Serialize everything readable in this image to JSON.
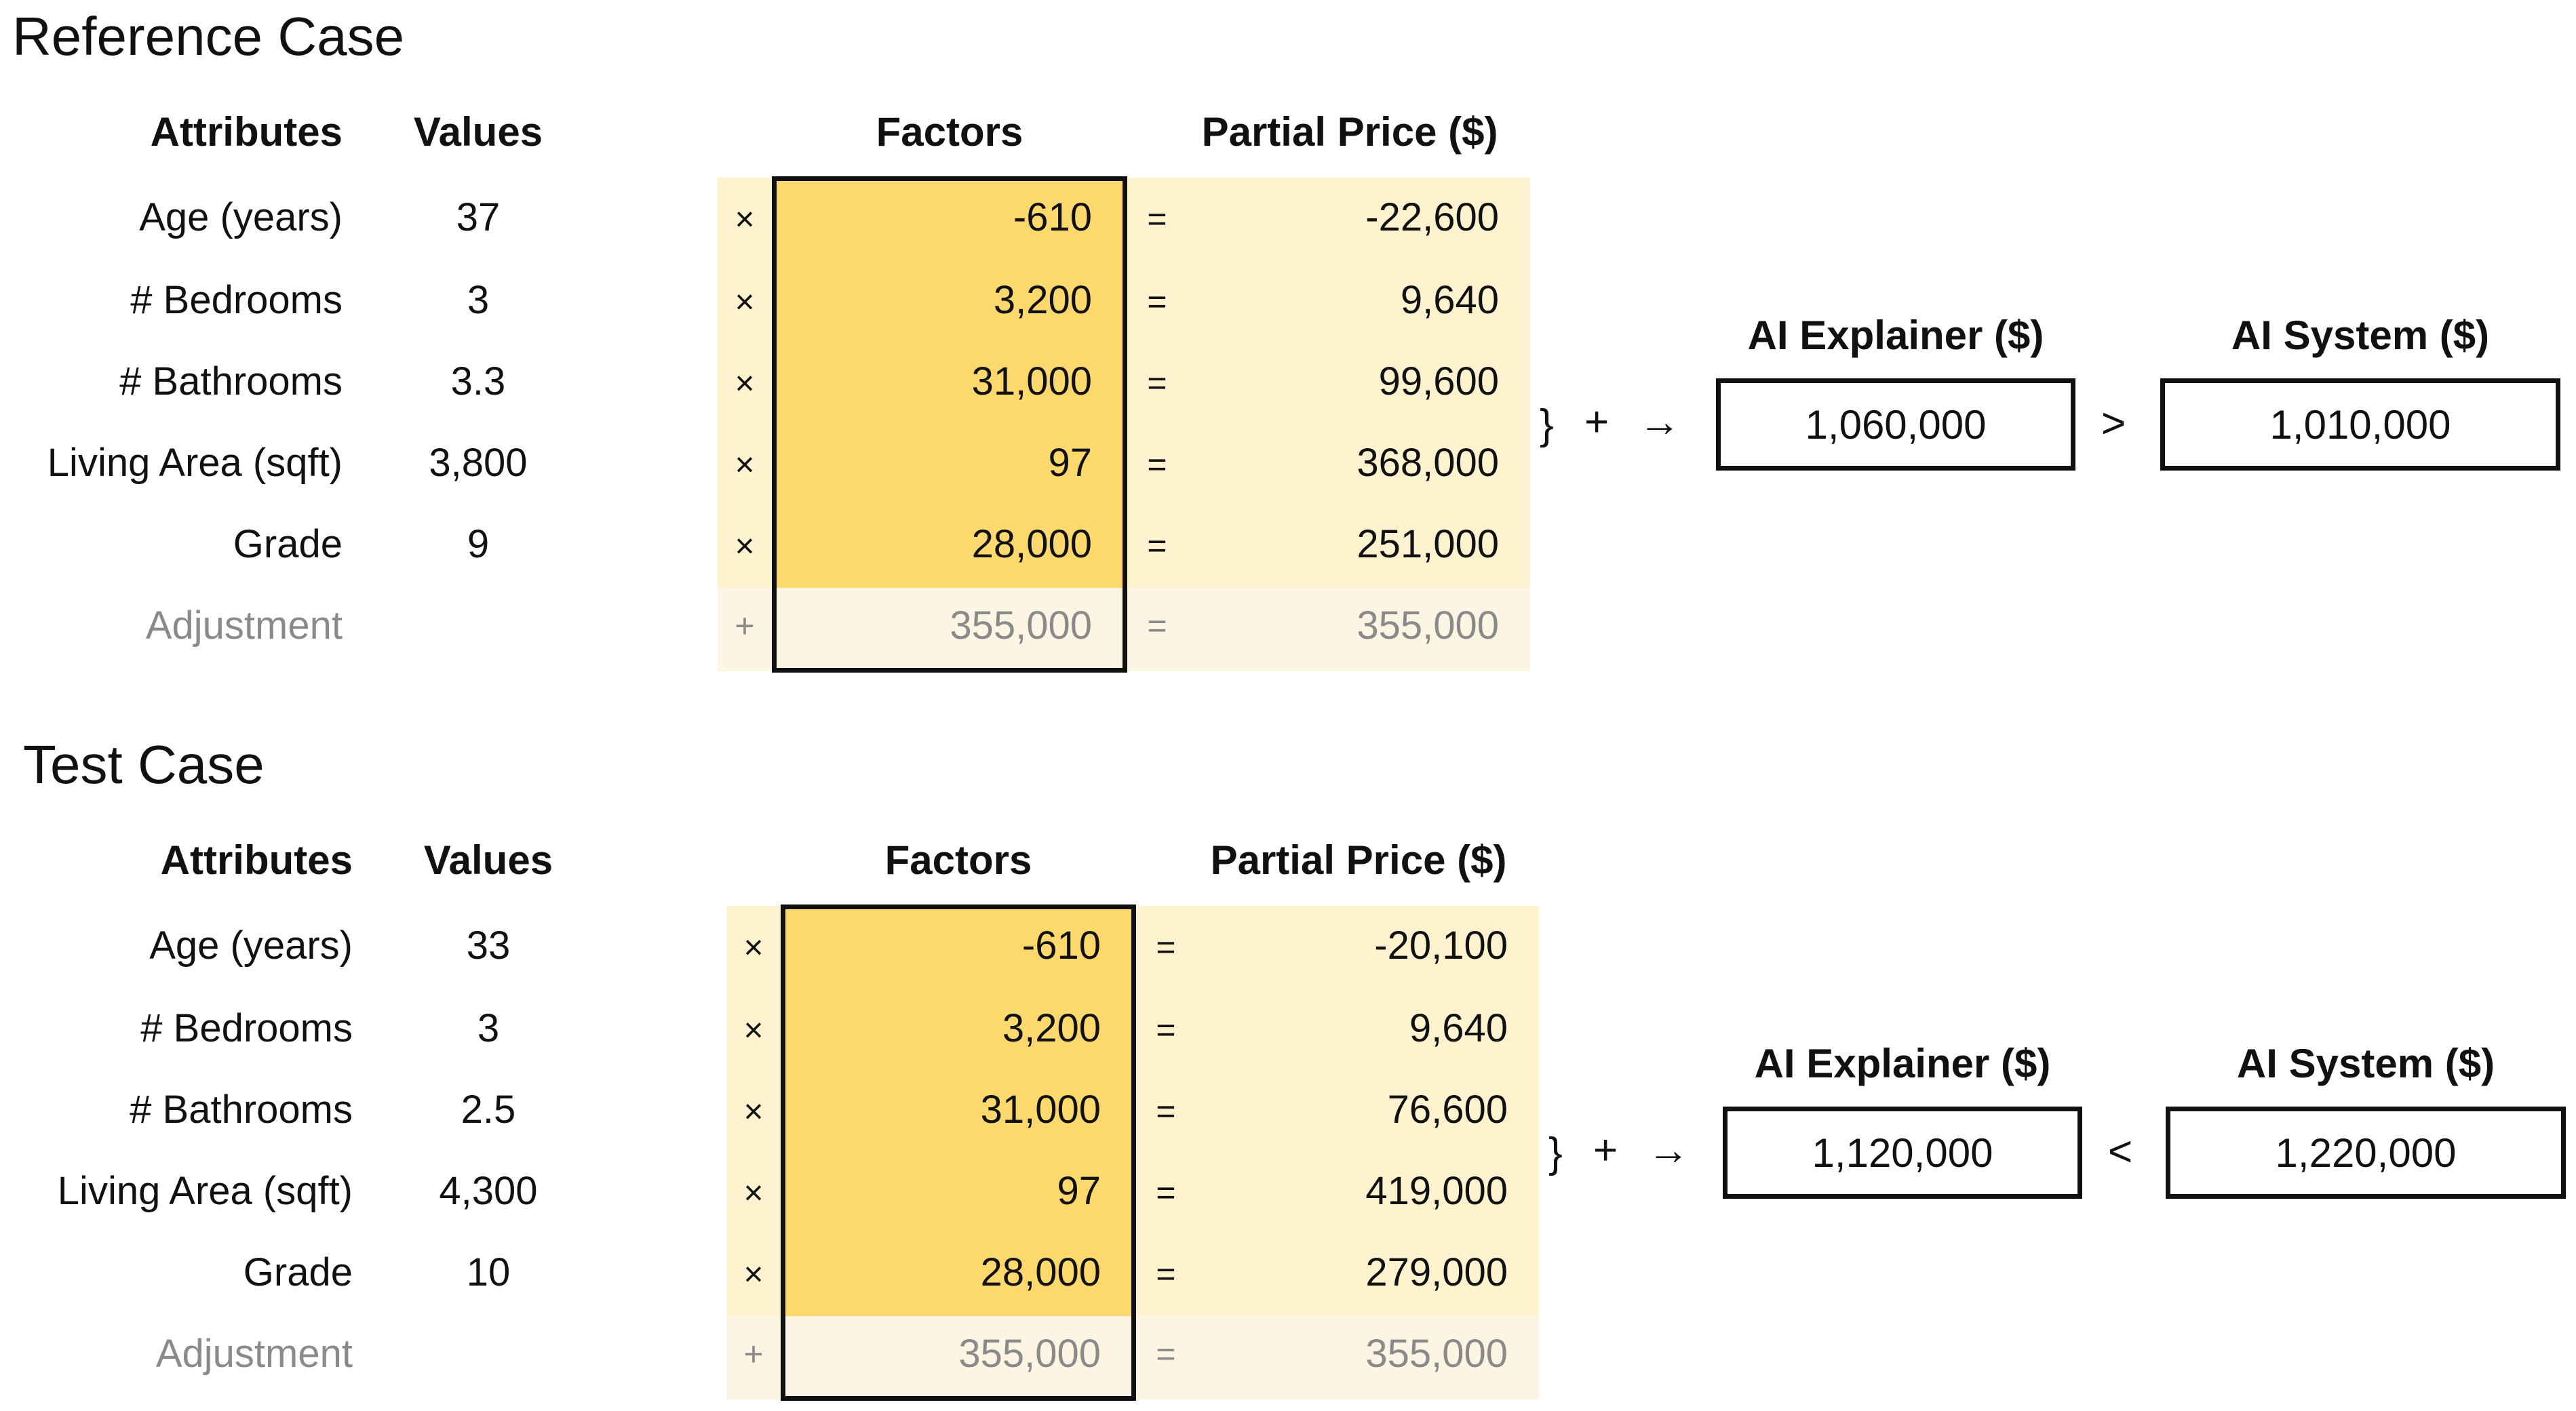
{
  "headers": {
    "attributes": "Attributes",
    "values": "Values",
    "factors": "Factors",
    "partial_price": "Partial Price ($)",
    "ai_explainer": "AI Explainer ($)",
    "ai_system": "AI System ($)"
  },
  "operators": {
    "times": "×",
    "equals": "=",
    "plus": "+",
    "brace": "}",
    "plus_arrow": "+",
    "arrow": "→"
  },
  "cases": [
    {
      "title": "Reference Case",
      "rows": [
        {
          "attribute": "Age (years)",
          "value": "37",
          "factor": "-610",
          "partial": "-22,600"
        },
        {
          "attribute": "# Bedrooms",
          "value": "3",
          "factor": "3,200",
          "partial": "9,640"
        },
        {
          "attribute": "# Bathrooms",
          "value": "3.3",
          "factor": "31,000",
          "partial": "99,600"
        },
        {
          "attribute": "Living Area (sqft)",
          "value": "3,800",
          "factor": "97",
          "partial": "368,000"
        },
        {
          "attribute": "Grade",
          "value": "9",
          "factor": "28,000",
          "partial": "251,000"
        }
      ],
      "adjustment": {
        "attribute": "Adjustment",
        "factor": "355,000",
        "partial": "355,000"
      },
      "ai_explainer_value": "1,060,000",
      "comparison": ">",
      "ai_system_value": "1,010,000"
    },
    {
      "title": "Test Case",
      "rows": [
        {
          "attribute": "Age (years)",
          "value": "33",
          "factor": "-610",
          "partial": "-20,100"
        },
        {
          "attribute": "# Bedrooms",
          "value": "3",
          "factor": "3,200",
          "partial": "9,640"
        },
        {
          "attribute": "# Bathrooms",
          "value": "2.5",
          "factor": "31,000",
          "partial": "76,600"
        },
        {
          "attribute": "Living Area (sqft)",
          "value": "4,300",
          "factor": "97",
          "partial": "419,000"
        },
        {
          "attribute": "Grade",
          "value": "10",
          "factor": "28,000",
          "partial": "279,000"
        }
      ],
      "adjustment": {
        "attribute": "Adjustment",
        "factor": "355,000",
        "partial": "355,000"
      },
      "ai_explainer_value": "1,120,000",
      "comparison": "<",
      "ai_system_value": "1,220,000"
    }
  ]
}
